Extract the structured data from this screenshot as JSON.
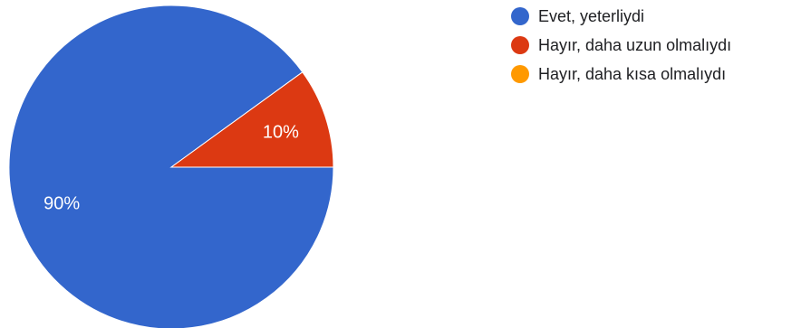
{
  "chart_data": {
    "type": "pie",
    "categories": [
      "Evet, yeterliydi",
      "Hayır, daha uzun olmalıydı",
      "Hayır, daha kısa olmalıydı"
    ],
    "values": [
      90,
      10,
      0
    ],
    "labels": [
      "90%",
      "10%",
      ""
    ],
    "colors": [
      "#3366cc",
      "#dc3912",
      "#ff9900"
    ],
    "legend_position": "right"
  }
}
